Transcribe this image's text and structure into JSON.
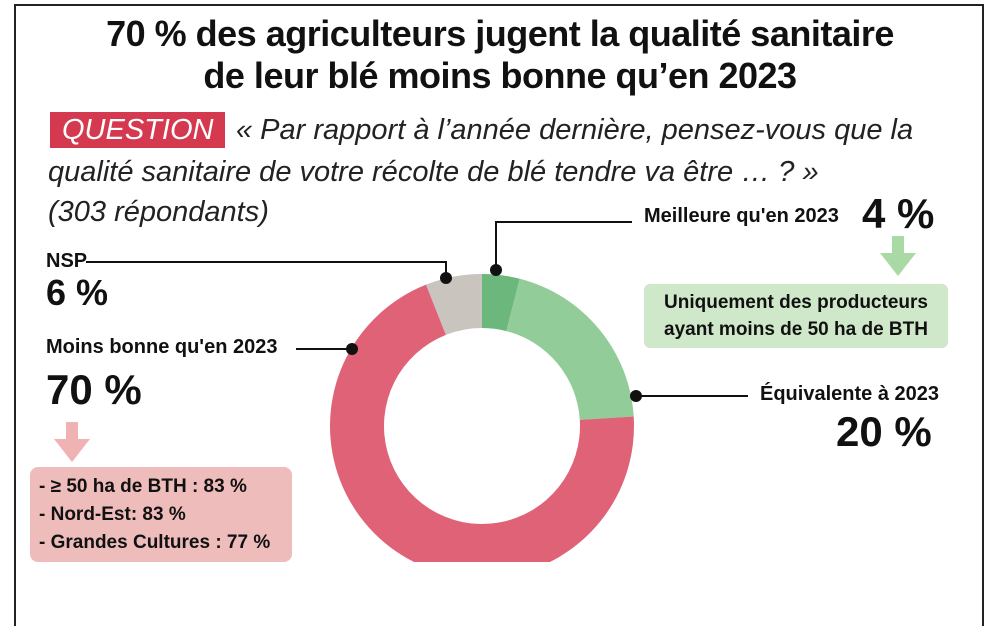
{
  "title": {
    "line1": "70 % des agriculteurs jugent la qualité sanitaire",
    "line2": "de leur blé moins bonne qu’en 2023"
  },
  "question": {
    "tag": "QUESTION",
    "line1": "« Par rapport à l’année dernière, pensez-vous que la",
    "line2": "qualité sanitaire de votre récolte de blé tendre va être … ? »",
    "respondents": "(303 répondants)"
  },
  "callouts": {
    "meilleure": {
      "label": "Meilleure qu'en 2023",
      "value": "4 %"
    },
    "equivalente": {
      "label": "Équivalente à 2023",
      "value": "20 %"
    },
    "moins_bonne": {
      "label": "Moins bonne qu'en 2023",
      "value": "70 %"
    },
    "nsp": {
      "label": "NSP",
      "value": "6 %"
    }
  },
  "notes": {
    "green": [
      "Uniquement des producteurs",
      "ayant moins de 50 ha de BTH"
    ],
    "red": [
      "- ≥ 50 ha de BTH : 83 %",
      "- Nord-Est: 83 %",
      "- Grandes Cultures : 77 %"
    ]
  },
  "chart_data": {
    "type": "pie",
    "title": "70 % des agriculteurs jugent la qualité sanitaire de leur blé moins bonne qu’en 2023",
    "categories": [
      "Meilleure qu'en 2023",
      "Équivalente à 2023",
      "Moins bonne qu'en 2023",
      "NSP"
    ],
    "values": [
      4,
      20,
      70,
      6
    ],
    "unit": "%",
    "donut": true,
    "colors": [
      "#6cb87c",
      "#92cc98",
      "#e06276",
      "#c9c4bd"
    ]
  },
  "colors": {
    "accent_red": "#d5394f",
    "note_green": "#cfe8c9",
    "note_red": "#efbcbc",
    "arrow_green": "#a9d9a4",
    "arrow_red": "#f0b3b3"
  }
}
